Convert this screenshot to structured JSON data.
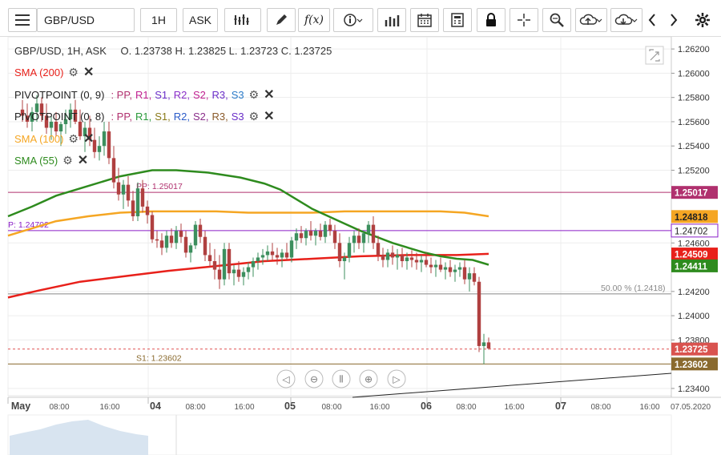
{
  "toolbar": {
    "symbol": "GBP/USD",
    "interval": "1H",
    "price_type": "ASK",
    "fx_label": "f(x)"
  },
  "header": {
    "symbol_line": "GBP/USD, 1H, ASK",
    "ohlc": "O. 1.23738 H. 1.23825 L. 1.23723 C. 1.23725"
  },
  "legend": {
    "sma200": "SMA (200)",
    "pivot1_name": "PIVOTPOINT (0, 9)",
    "pivot1_levels": [
      ": PP,",
      "R1,",
      "S1,",
      "R2,",
      "S2,",
      "R3,",
      "S3"
    ],
    "pivot2_name": "PIVOTPOINT (0, 8)",
    "pivot2_levels": [
      ": PP,",
      "R1,",
      "S1,",
      "R2,",
      "S2,",
      "R3,",
      "S3"
    ],
    "sma100": "SMA (100)",
    "sma55": "SMA (55)"
  },
  "colors": {
    "sma200": "#e8201a",
    "sma100": "#f5a623",
    "sma55": "#2e8b1e",
    "pivot_pp": "#b0306e",
    "pivot_p": "#8a1ec8",
    "bull": "#3c8f5e",
    "bear": "#b04040",
    "close": "#d9534f",
    "s1": "#8a6a2e"
  },
  "chart_data": {
    "type": "line",
    "price_axis": {
      "min": 1.2334,
      "max": 1.263,
      "ticks": [
        "1.26200",
        "1.26000",
        "1.25800",
        "1.25600",
        "1.25400",
        "1.25200",
        "1.24600",
        "1.24200",
        "1.24000",
        "1.23800",
        "1.23400"
      ]
    },
    "time_axis": {
      "labels": [
        "May",
        "08:00",
        "16:00",
        "04",
        "08:00",
        "16:00",
        "05",
        "08:00",
        "16:00",
        "06",
        "08:00",
        "16:00",
        "07",
        "08:00",
        "16:00",
        "07.05.2020"
      ]
    },
    "levels": [
      {
        "label": "PP: 1.25017",
        "value": 1.25017,
        "badge": "1.25017"
      },
      {
        "label": "P: 1.24702",
        "value": 1.24702,
        "badge": "1.24702"
      },
      {
        "label": "50.00 % (1.2418)",
        "value": 1.2418,
        "badge": ""
      },
      {
        "label": "S1: 1.23602",
        "value": 1.23602,
        "badge": "1.23602"
      },
      {
        "label": "",
        "value": 1.23725,
        "badge": "1.23725"
      }
    ],
    "series_badges": [
      {
        "value": 1.24818,
        "text": "1.24818"
      },
      {
        "value": 1.24509,
        "text": "1.24509"
      },
      {
        "value": 1.24411,
        "text": "1.24411"
      }
    ],
    "sma200": [
      [
        0,
        1.2415
      ],
      [
        40,
        1.2421
      ],
      [
        90,
        1.2428
      ],
      [
        150,
        1.2433
      ],
      [
        200,
        1.2437
      ],
      [
        260,
        1.2441
      ],
      [
        320,
        1.2445
      ],
      [
        380,
        1.2447
      ],
      [
        440,
        1.2449
      ],
      [
        500,
        1.245
      ],
      [
        560,
        1.245
      ],
      [
        600,
        1.2451
      ]
    ],
    "sma100": [
      [
        0,
        1.2466
      ],
      [
        30,
        1.2472
      ],
      [
        60,
        1.2478
      ],
      [
        100,
        1.2482
      ],
      [
        140,
        1.2485
      ],
      [
        180,
        1.2486
      ],
      [
        220,
        1.2486
      ],
      [
        260,
        1.2486
      ],
      [
        300,
        1.2485
      ],
      [
        340,
        1.2485
      ],
      [
        380,
        1.2485
      ],
      [
        420,
        1.2486
      ],
      [
        460,
        1.2486
      ],
      [
        500,
        1.2486
      ],
      [
        540,
        1.2486
      ],
      [
        570,
        1.2485
      ],
      [
        600,
        1.2482
      ]
    ],
    "sma55": [
      [
        0,
        1.2482
      ],
      [
        30,
        1.249
      ],
      [
        60,
        1.2499
      ],
      [
        100,
        1.2507
      ],
      [
        140,
        1.2515
      ],
      [
        180,
        1.252
      ],
      [
        210,
        1.252
      ],
      [
        250,
        1.2518
      ],
      [
        290,
        1.2514
      ],
      [
        320,
        1.2509
      ],
      [
        340,
        1.2504
      ],
      [
        360,
        1.2496
      ],
      [
        380,
        1.2488
      ],
      [
        400,
        1.2482
      ],
      [
        420,
        1.2476
      ],
      [
        440,
        1.247
      ],
      [
        460,
        1.2465
      ],
      [
        480,
        1.246
      ],
      [
        500,
        1.2456
      ],
      [
        520,
        1.2452
      ],
      [
        540,
        1.2449
      ],
      [
        560,
        1.2447
      ],
      [
        580,
        1.2446
      ],
      [
        600,
        1.2442
      ]
    ],
    "candles": [
      [
        18,
        1.257,
        1.2578,
        1.256,
        1.2565
      ],
      [
        24,
        1.2565,
        1.2575,
        1.2555,
        1.256
      ],
      [
        30,
        1.256,
        1.2572,
        1.2552,
        1.2568
      ],
      [
        36,
        1.2568,
        1.2582,
        1.256,
        1.2575
      ],
      [
        42,
        1.2575,
        1.258,
        1.256,
        1.2565
      ],
      [
        48,
        1.2565,
        1.2575,
        1.255,
        1.2555
      ],
      [
        54,
        1.2555,
        1.2565,
        1.2545,
        1.256
      ],
      [
        60,
        1.256,
        1.2568,
        1.2548,
        1.2552
      ],
      [
        66,
        1.2552,
        1.256,
        1.254,
        1.2558
      ],
      [
        72,
        1.2558,
        1.257,
        1.255,
        1.2562
      ],
      [
        78,
        1.2562,
        1.2575,
        1.2555,
        1.257
      ],
      [
        84,
        1.257,
        1.2578,
        1.2558,
        1.256
      ],
      [
        90,
        1.256,
        1.257,
        1.2545,
        1.2548
      ],
      [
        96,
        1.2548,
        1.256,
        1.2535,
        1.2555
      ],
      [
        102,
        1.2555,
        1.2565,
        1.254,
        1.2545
      ],
      [
        108,
        1.2545,
        1.2555,
        1.253,
        1.2535
      ],
      [
        114,
        1.2535,
        1.2548,
        1.2528,
        1.254
      ],
      [
        120,
        1.254,
        1.256,
        1.2532,
        1.2552
      ],
      [
        126,
        1.2552,
        1.256,
        1.2525,
        1.253
      ],
      [
        132,
        1.253,
        1.254,
        1.2505,
        1.251
      ],
      [
        138,
        1.251,
        1.2522,
        1.2495,
        1.25
      ],
      [
        144,
        1.25,
        1.2512,
        1.2488,
        1.2508
      ],
      [
        150,
        1.2508,
        1.2515,
        1.249,
        1.2495
      ],
      [
        156,
        1.2495,
        1.2503,
        1.2478,
        1.2482
      ],
      [
        162,
        1.2482,
        1.251,
        1.2478,
        1.2505
      ],
      [
        168,
        1.2505,
        1.2512,
        1.2485,
        1.249
      ],
      [
        174,
        1.249,
        1.2495,
        1.2476,
        1.2483
      ],
      [
        180,
        1.2483,
        1.2486,
        1.246,
        1.2463
      ],
      [
        186,
        1.2463,
        1.247,
        1.2456,
        1.2462
      ],
      [
        192,
        1.2462,
        1.2468,
        1.245,
        1.2456
      ],
      [
        198,
        1.2456,
        1.247,
        1.2452,
        1.2466
      ],
      [
        204,
        1.2466,
        1.2472,
        1.2456,
        1.246
      ],
      [
        210,
        1.246,
        1.2474,
        1.2455,
        1.247
      ],
      [
        216,
        1.247,
        1.2476,
        1.246,
        1.2465
      ],
      [
        222,
        1.2465,
        1.247,
        1.2448,
        1.2452
      ],
      [
        228,
        1.2452,
        1.246,
        1.2444,
        1.2458
      ],
      [
        234,
        1.2458,
        1.2478,
        1.2455,
        1.2475
      ],
      [
        240,
        1.2475,
        1.248,
        1.246,
        1.2465
      ],
      [
        246,
        1.2465,
        1.247,
        1.2445,
        1.245
      ],
      [
        252,
        1.245,
        1.246,
        1.244,
        1.2445
      ],
      [
        258,
        1.2445,
        1.2455,
        1.243,
        1.2438
      ],
      [
        264,
        1.2438,
        1.245,
        1.2422,
        1.243
      ],
      [
        270,
        1.243,
        1.246,
        1.2425,
        1.2455
      ],
      [
        276,
        1.2455,
        1.246,
        1.243,
        1.2435
      ],
      [
        282,
        1.2435,
        1.2442,
        1.2425,
        1.2438
      ],
      [
        288,
        1.2438,
        1.2445,
        1.2428,
        1.2432
      ],
      [
        294,
        1.2432,
        1.244,
        1.2425,
        1.2436
      ],
      [
        300,
        1.2436,
        1.2444,
        1.243,
        1.244
      ],
      [
        306,
        1.244,
        1.2448,
        1.2432,
        1.2445
      ],
      [
        312,
        1.2445,
        1.2452,
        1.2438,
        1.2448
      ],
      [
        318,
        1.2448,
        1.2455,
        1.2442,
        1.245
      ],
      [
        324,
        1.245,
        1.2458,
        1.2445,
        1.2453
      ],
      [
        330,
        1.2453,
        1.246,
        1.2446,
        1.245
      ],
      [
        336,
        1.245,
        1.2456,
        1.2442,
        1.2448
      ],
      [
        342,
        1.2448,
        1.2455,
        1.244,
        1.2452
      ],
      [
        348,
        1.2452,
        1.246,
        1.2446,
        1.2448
      ],
      [
        354,
        1.2448,
        1.2465,
        1.2444,
        1.2462
      ],
      [
        360,
        1.2462,
        1.2472,
        1.2455,
        1.2468
      ],
      [
        366,
        1.2468,
        1.2474,
        1.246,
        1.2464
      ],
      [
        372,
        1.2464,
        1.2472,
        1.2458,
        1.247
      ],
      [
        378,
        1.247,
        1.2478,
        1.2462,
        1.2466
      ],
      [
        384,
        1.2466,
        1.2472,
        1.2458,
        1.247
      ],
      [
        390,
        1.247,
        1.2476,
        1.2462,
        1.2465
      ],
      [
        396,
        1.2465,
        1.2478,
        1.246,
        1.2475
      ],
      [
        402,
        1.2475,
        1.248,
        1.2466,
        1.247
      ],
      [
        408,
        1.247,
        1.2475,
        1.2455,
        1.246
      ],
      [
        414,
        1.246,
        1.2468,
        1.244,
        1.2445
      ],
      [
        420,
        1.2445,
        1.2452,
        1.243,
        1.2448
      ],
      [
        426,
        1.2448,
        1.2465,
        1.2444,
        1.246
      ],
      [
        432,
        1.246,
        1.247,
        1.2452,
        1.2466
      ],
      [
        438,
        1.2466,
        1.2472,
        1.2455,
        1.246
      ],
      [
        444,
        1.246,
        1.247,
        1.2452,
        1.2468
      ],
      [
        450,
        1.2468,
        1.2478,
        1.246,
        1.2475
      ],
      [
        456,
        1.2475,
        1.2482,
        1.2455,
        1.246
      ],
      [
        462,
        1.246,
        1.2466,
        1.2445,
        1.245
      ],
      [
        468,
        1.245,
        1.2456,
        1.244,
        1.2446
      ],
      [
        474,
        1.2446,
        1.2455,
        1.244,
        1.2452
      ],
      [
        480,
        1.2452,
        1.2458,
        1.2442,
        1.2448
      ],
      [
        486,
        1.2448,
        1.2455,
        1.2438,
        1.245
      ],
      [
        492,
        1.245,
        1.2456,
        1.244,
        1.2445
      ],
      [
        498,
        1.2445,
        1.2452,
        1.2438,
        1.2448
      ],
      [
        504,
        1.2448,
        1.2454,
        1.244,
        1.2446
      ],
      [
        510,
        1.2446,
        1.2452,
        1.2438,
        1.2444
      ],
      [
        516,
        1.2444,
        1.245,
        1.2436,
        1.2446
      ],
      [
        522,
        1.2446,
        1.2452,
        1.244,
        1.2442
      ],
      [
        528,
        1.2442,
        1.2448,
        1.2435,
        1.244
      ],
      [
        534,
        1.244,
        1.2446,
        1.2432,
        1.2442
      ],
      [
        540,
        1.2442,
        1.2448,
        1.2436,
        1.2438
      ],
      [
        546,
        1.2438,
        1.2444,
        1.243,
        1.244
      ],
      [
        552,
        1.244,
        1.2446,
        1.2432,
        1.2436
      ],
      [
        558,
        1.2436,
        1.2442,
        1.2428,
        1.2438
      ],
      [
        564,
        1.2438,
        1.2444,
        1.2432,
        1.244
      ],
      [
        570,
        1.244,
        1.2446,
        1.2426,
        1.243
      ],
      [
        576,
        1.243,
        1.244,
        1.242,
        1.2435
      ],
      [
        582,
        1.2435,
        1.244,
        1.2425,
        1.2428
      ],
      [
        588,
        1.2428,
        1.2432,
        1.237,
        1.2375
      ],
      [
        594,
        1.2375,
        1.2385,
        1.236,
        1.2378
      ],
      [
        600,
        1.2378,
        1.2382,
        1.2372,
        1.2373
      ]
    ]
  }
}
